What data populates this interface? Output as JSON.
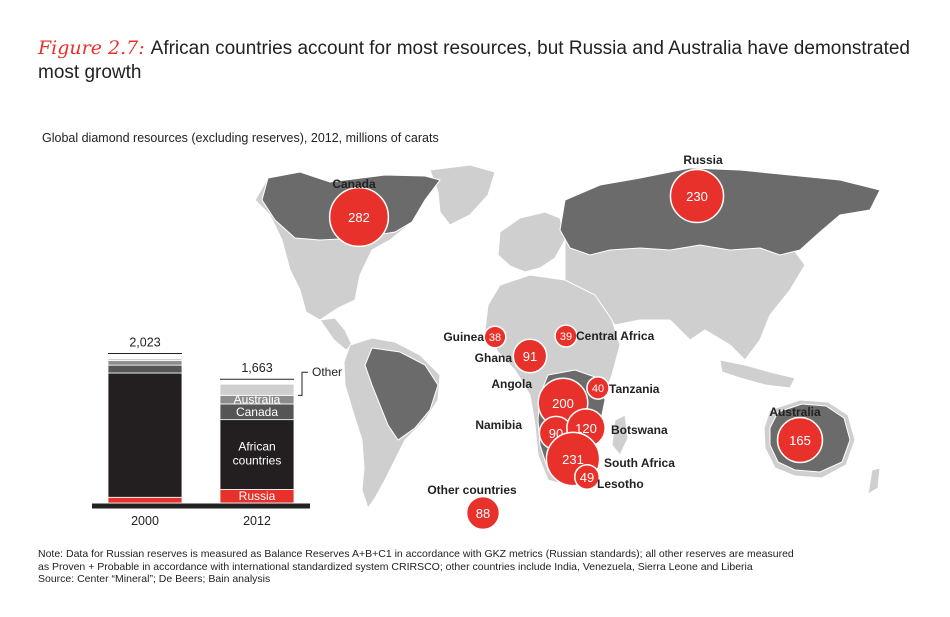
{
  "figure": {
    "label": "Figure 2.7:",
    "title": "African countries account for most resources, but Russia and Australia have demonstrated most growth",
    "subtitle": "Global diamond  resources (excluding reserves), 2012, millions of carats"
  },
  "chart_data": [
    {
      "type": "bar",
      "stacked": true,
      "categories": [
        "2000",
        "2012"
      ],
      "totals": [
        "2,023",
        "1,663"
      ],
      "series": [
        {
          "name": "Russia",
          "values": [
            80,
            190
          ],
          "color": "#e8312a"
        },
        {
          "name": "African countries",
          "values": [
            1740,
            977
          ],
          "color": "#231f20"
        },
        {
          "name": "Canada",
          "values": [
            110,
            220
          ],
          "color": "#555555"
        },
        {
          "name": "Australia",
          "values": [
            63,
            120
          ],
          "color": "#8c8c8c"
        },
        {
          "name": "Other",
          "values": [
            30,
            156
          ],
          "color": "#cfcfcf"
        }
      ],
      "segment_labels": {
        "russia": "Russia",
        "african": "African countries",
        "canada": "Canada",
        "australia": "Australia",
        "other": "Other"
      },
      "ylim": [
        0,
        2100
      ]
    },
    {
      "type": "map",
      "locations": [
        {
          "name": "Canada",
          "value": 282
        },
        {
          "name": "Russia",
          "value": 230
        },
        {
          "name": "Guinea",
          "value": 38
        },
        {
          "name": "Central Africa",
          "value": 39
        },
        {
          "name": "Ghana",
          "value": 91
        },
        {
          "name": "Angola",
          "value": 200
        },
        {
          "name": "Tanzania",
          "value": 40
        },
        {
          "name": "Namibia",
          "value": 90
        },
        {
          "name": "Botswana",
          "value": 120
        },
        {
          "name": "South Africa",
          "value": 231
        },
        {
          "name": "Lesotho",
          "value": 49
        },
        {
          "name": "Australia",
          "value": 165
        },
        {
          "name": "Other countries",
          "value": 88
        }
      ],
      "bubble_color": "#e8312a"
    }
  ],
  "notes": {
    "line1": "Note:  Data for Russian reserves is measured as Balance Reserves A+B+C1 in accordance with GKZ metrics (Russian standards); all other reserves  are measured",
    "line2": "as Proven + Probable in accordance with international standardized system CRIRSCO; other countries include India, Venezuela, Sierra Leone and Liberia",
    "line3": "Source:  Center “Mineral”; De Beers; Bain analysis"
  }
}
